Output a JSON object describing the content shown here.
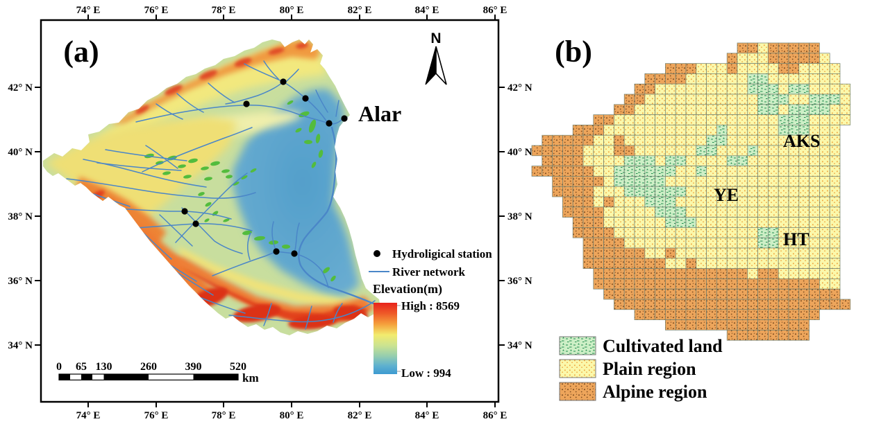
{
  "figure": {
    "background": "#FFFFFF"
  },
  "panel_a": {
    "label": "(a)",
    "axis": {
      "top_labels": [
        "74° E",
        "76° E",
        "78° E",
        "80° E",
        "82° E",
        "84° E",
        "86° E"
      ],
      "bottom_labels": [
        "74° E",
        "76° E",
        "78° E",
        "80° E",
        "82° E",
        "84° E",
        "86° E"
      ],
      "left_labels": [
        "42° N",
        "40° N",
        "38° N",
        "36° N",
        "34° N"
      ],
      "right_labels": [
        "42° N",
        "40° N",
        "38° N",
        "36° N",
        "34° N"
      ]
    },
    "north_arrow_label": "N",
    "city_label": "Alar",
    "legend": {
      "station_label": "Hydroligical station",
      "river_label": "River network",
      "elevation_title": "Elevation(m)",
      "elevation_high": "High : 8569",
      "elevation_low": "Low : 994"
    },
    "scalebar": {
      "labels": [
        "0",
        "65",
        "130",
        "260",
        "390",
        "520"
      ],
      "unit_label": "km"
    },
    "stations_xy": [
      [
        408,
        118
      ],
      [
        440,
        142
      ],
      [
        355,
        150
      ],
      [
        474,
        178
      ],
      [
        496,
        171
      ],
      [
        266,
        305
      ],
      [
        282,
        323
      ],
      [
        398,
        363
      ],
      [
        424,
        366
      ]
    ],
    "colors": {
      "elevation_high": "#E8231B",
      "elevation_low": "#3D9AD1",
      "river": "#4A86C8",
      "station": "#000000"
    }
  },
  "panel_b": {
    "label": "(b)",
    "region_labels": [
      {
        "text": "AKS"
      },
      {
        "text": "YE"
      },
      {
        "text": "HT"
      }
    ],
    "legend": [
      {
        "label": "Cultivated land"
      },
      {
        "label": "Plain region"
      },
      {
        "label": "Alpine region"
      }
    ],
    "colors": {
      "cultivated": "#CDEFC6",
      "plain": "#FBF8AB",
      "alpine": "#EDA55B",
      "grid_line": "#6F7F6F"
    },
    "grid_rows": [
      "....................AAPAAAAA...",
      "...................APPPAAAAAP..",
      ".............AAAPPPAPPPPAAPPPP.",
      "...........AAAAPPPPPPCCPPPPPPP.",
      "..........AAPPPPPPPPPCCCPCCPPPP",
      ".........AAPPPPPPPPPPPCCCPPCCCP",
      "........AAPPPPPPPPPPPPCCPCCCCPP",
      "......AAPPPPPPPPPPPPPPPPCCCPPPP",
      "....AAAPPPPPPPPPPPCPPPPPCCCPPP.",
      ".AAAAAPPAPPPPPPPPCCPPPPPPPPPPP.",
      "AAAAAPPPAAPPPPPPCCPPPCPPPPPPPP.",
      ".AAAAPPPPCCCPCCPPPPCCPPPPPPPPP.",
      "AAAAAAPPCCCCCCPPCPPPPPPPPPPPPP.",
      "..AAAAAPCCCCCPPPPPPPPPPPPPPPPP.",
      "..AAAAPPPCCCCCCPPPPPPPPPPPPPPP.",
      "...AAAPAPPPCCCPPPPPPPPPPPPPPPP.",
      "...AAAAPPPPPCCCPPPPPPPPPPPPPPP.",
      "....AAAPPPPPPCCCPPPPPPPPPPPPPP.",
      "....AAAAPPPPPPPPPPPPPPCCPPPPPP.",
      ".....AAAAPPPPPPPPPPPPPCCPPPPPP.",
      ".....AAAAAAPPAPPPPPPPPPPPPPPPP.",
      ".....AAAAAAAAPPAPPPPPPPPPPPPPP.",
      "......AAAAAAAAAAAAAAAPAAPPPPPP.",
      "......AAAAAAAAAAAAAAAAAAAAAAPP.",
      ".......AAAAAAAAAAAAAAAAAAAAAAA.",
      "........AAAAAAAAAAAAAAAAAAAAAAA",
      "..........AAAAAAAAAAAAAAAAAA...",
      ".............AAAAAAAAAAAAAA....",
      "...................AAAAAAAA...."
    ]
  }
}
